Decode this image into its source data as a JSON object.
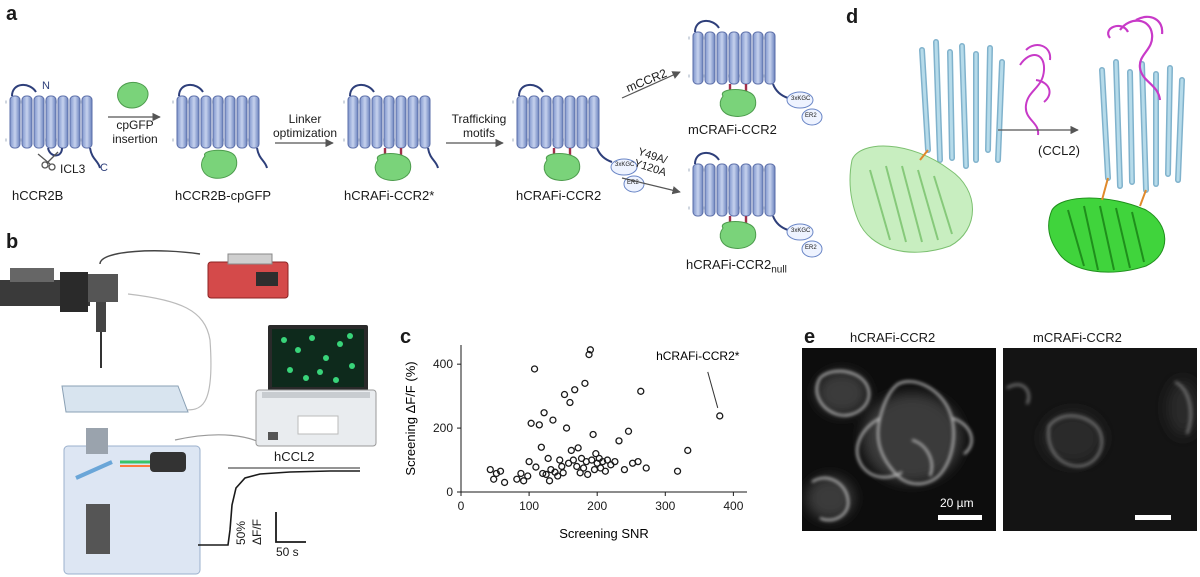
{
  "panel_a": {
    "label": "a",
    "n_terminus": "N",
    "c_terminus": "C",
    "icl3": "ICL3",
    "constructs": [
      "hCCR2B",
      "hCCR2B-cpGFP",
      "hCRAFi-CCR2*",
      "hCRAFi-CCR2",
      "mCRAFi-CCR2",
      "hCRAFi-CCR2",
      "null"
    ],
    "steps": {
      "step1_line1": "cpGFP",
      "step1_line2": "insertion",
      "step2_line1": "Linker",
      "step2_line2": "optimization",
      "step3_line1": "Trafficking",
      "step3_line2": "motifs",
      "step4": "mCCR2",
      "step5_line1": "Y49A/",
      "step5_line2": "Y120A"
    },
    "tags": {
      "kgc": "3xKGC",
      "er2": "ER2"
    }
  },
  "panel_b": {
    "label": "b",
    "stimulus": "hCCL2",
    "scale_y_value": "50%",
    "scale_y_unit": "ΔF/F",
    "scale_x": "50 s"
  },
  "panel_c": {
    "label": "c"
  },
  "panel_d": {
    "label": "d",
    "arrow_label": "(CCL2)"
  },
  "panel_e": {
    "label": "e",
    "left_title": "hCRAFi-CCR2",
    "right_title": "mCRAFi-CCR2",
    "scale_bar": "20 µm"
  },
  "chart_data": {
    "type": "scatter",
    "xlabel": "Screening SNR",
    "ylabel": "Screening ΔF/F (%)",
    "xlim": [
      0,
      420
    ],
    "ylim": [
      0,
      460
    ],
    "xticks": [
      0,
      100,
      200,
      300,
      400
    ],
    "yticks": [
      0,
      200,
      400
    ],
    "annotation": {
      "text": "hCRAFi-CCR2*",
      "x": 380,
      "y": 238
    },
    "points": [
      [
        43,
        70
      ],
      [
        48,
        40
      ],
      [
        52,
        58
      ],
      [
        58,
        65
      ],
      [
        64,
        30
      ],
      [
        82,
        40
      ],
      [
        88,
        58
      ],
      [
        92,
        35
      ],
      [
        98,
        50
      ],
      [
        100,
        95
      ],
      [
        103,
        215
      ],
      [
        108,
        385
      ],
      [
        110,
        78
      ],
      [
        115,
        210
      ],
      [
        118,
        140
      ],
      [
        120,
        58
      ],
      [
        122,
        248
      ],
      [
        125,
        55
      ],
      [
        128,
        105
      ],
      [
        130,
        35
      ],
      [
        132,
        70
      ],
      [
        135,
        225
      ],
      [
        138,
        62
      ],
      [
        142,
        50
      ],
      [
        145,
        100
      ],
      [
        148,
        80
      ],
      [
        150,
        60
      ],
      [
        152,
        305
      ],
      [
        155,
        200
      ],
      [
        158,
        90
      ],
      [
        160,
        280
      ],
      [
        162,
        130
      ],
      [
        165,
        100
      ],
      [
        167,
        320
      ],
      [
        170,
        80
      ],
      [
        172,
        138
      ],
      [
        175,
        60
      ],
      [
        177,
        105
      ],
      [
        180,
        75
      ],
      [
        182,
        340
      ],
      [
        184,
        95
      ],
      [
        186,
        55
      ],
      [
        188,
        430
      ],
      [
        190,
        445
      ],
      [
        192,
        100
      ],
      [
        194,
        180
      ],
      [
        196,
        70
      ],
      [
        198,
        120
      ],
      [
        200,
        90
      ],
      [
        203,
        105
      ],
      [
        205,
        75
      ],
      [
        208,
        95
      ],
      [
        212,
        65
      ],
      [
        215,
        100
      ],
      [
        220,
        85
      ],
      [
        226,
        95
      ],
      [
        232,
        160
      ],
      [
        240,
        70
      ],
      [
        246,
        190
      ],
      [
        252,
        90
      ],
      [
        260,
        95
      ],
      [
        264,
        315
      ],
      [
        272,
        75
      ],
      [
        318,
        65
      ],
      [
        333,
        130
      ],
      [
        380,
        238
      ]
    ]
  }
}
